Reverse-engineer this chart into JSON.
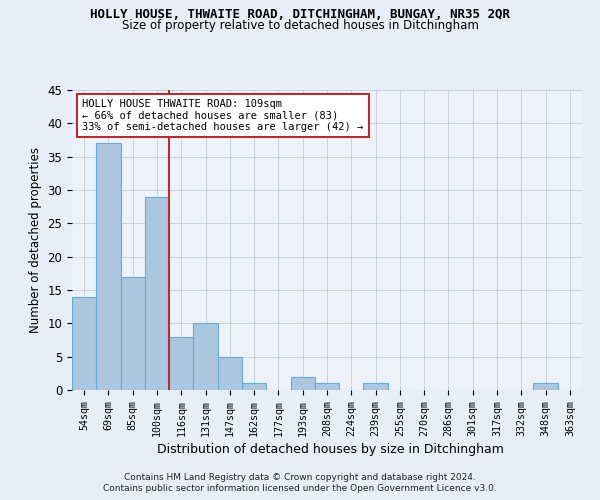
{
  "title": "HOLLY HOUSE, THWAITE ROAD, DITCHINGHAM, BUNGAY, NR35 2QR",
  "subtitle": "Size of property relative to detached houses in Ditchingham",
  "xlabel": "Distribution of detached houses by size in Ditchingham",
  "ylabel": "Number of detached properties",
  "bins": [
    "54sqm",
    "69sqm",
    "85sqm",
    "100sqm",
    "116sqm",
    "131sqm",
    "147sqm",
    "162sqm",
    "177sqm",
    "193sqm",
    "208sqm",
    "224sqm",
    "239sqm",
    "255sqm",
    "270sqm",
    "286sqm",
    "301sqm",
    "317sqm",
    "332sqm",
    "348sqm",
    "363sqm"
  ],
  "values": [
    14,
    37,
    17,
    29,
    8,
    10,
    5,
    1,
    0,
    2,
    1,
    0,
    1,
    0,
    0,
    0,
    0,
    0,
    0,
    1,
    0
  ],
  "bar_color": "#adc6e0",
  "bar_edge_color": "#6aaad4",
  "vline_x": 3.5,
  "vline_color": "#b03030",
  "annotation_title": "HOLLY HOUSE THWAITE ROAD: 109sqm",
  "annotation_line1": "← 66% of detached houses are smaller (83)",
  "annotation_line2": "33% of semi-detached houses are larger (42) →",
  "annotation_box_color": "#b03030",
  "ylim": [
    0,
    45
  ],
  "yticks": [
    0,
    5,
    10,
    15,
    20,
    25,
    30,
    35,
    40,
    45
  ],
  "footer1": "Contains HM Land Registry data © Crown copyright and database right 2024.",
  "footer2": "Contains public sector information licensed under the Open Government Licence v3.0.",
  "bg_color": "#e8eef8",
  "plot_bg_color": "#edf2fa"
}
